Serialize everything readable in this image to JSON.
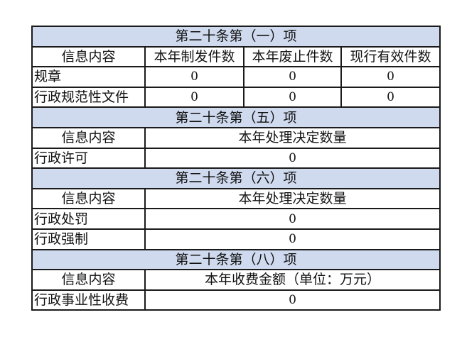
{
  "sections": [
    {
      "title": "第二十条第（一）项",
      "headers": [
        "信息内容",
        "本年制发件数",
        "本年废止件数",
        "现行有效件数"
      ],
      "rows": [
        {
          "label": "规章",
          "values": [
            "0",
            "0",
            "0"
          ]
        },
        {
          "label": "行政规范性文件",
          "values": [
            "0",
            "0",
            "0"
          ]
        }
      ]
    },
    {
      "title": "第二十条第（五）项",
      "headers": [
        "信息内容",
        "本年处理决定数量"
      ],
      "rows": [
        {
          "label": "行政许可",
          "value": "0"
        }
      ]
    },
    {
      "title": "第二十条第（六）项",
      "headers": [
        "信息内容",
        "本年处理决定数量"
      ],
      "rows": [
        {
          "label": "行政处罚",
          "value": "0"
        },
        {
          "label": "行政强制",
          "value": "0"
        }
      ]
    },
    {
      "title": "第二十条第（八）项",
      "headers": [
        "信息内容",
        "本年收费金额（单位：万元）"
      ],
      "rows": [
        {
          "label": "行政事业性收费",
          "value": "0"
        }
      ]
    }
  ],
  "colors": {
    "section_bg": "#cfdaee",
    "border": "#1a1a1a"
  }
}
